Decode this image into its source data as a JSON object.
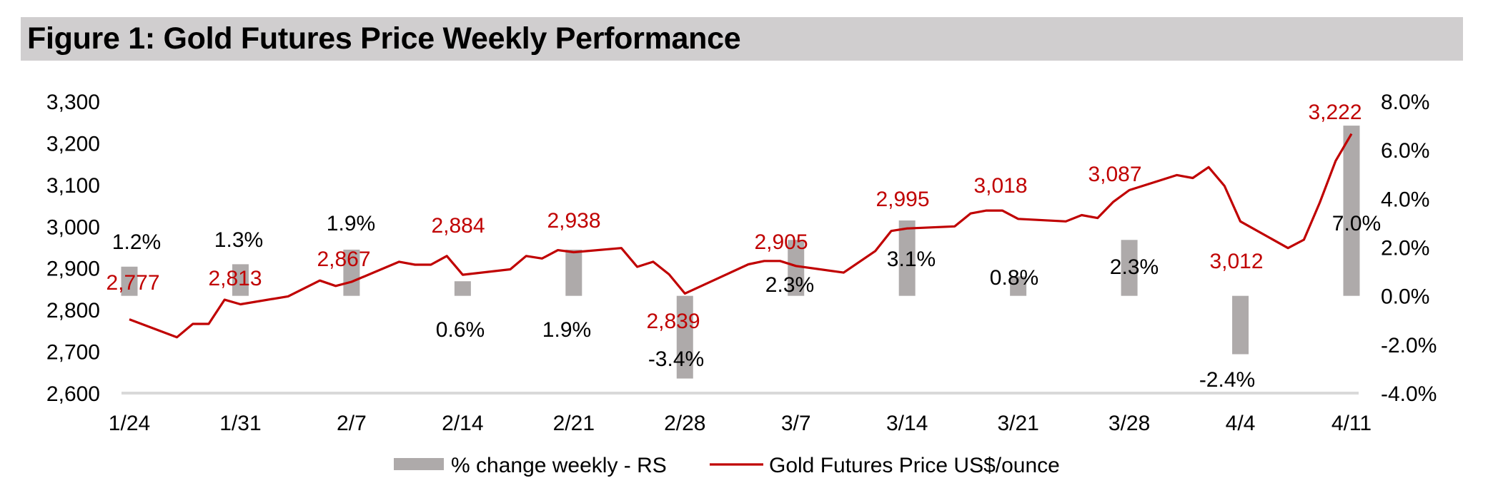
{
  "title": "Figure 1: Gold Futures Price Weekly Performance",
  "colors": {
    "bar": "#AEAAAA",
    "line": "#C00000",
    "title_bg": "#D0CECF",
    "axis": "#D9D9D9"
  },
  "chart_data": {
    "type": "bar+line",
    "title": "Figure 1: Gold Futures Price Weekly Performance",
    "x_tick_labels": [
      "1/24",
      "1/31",
      "2/7",
      "2/14",
      "2/21",
      "2/28",
      "3/7",
      "3/14",
      "3/21",
      "3/28",
      "4/4",
      "4/11"
    ],
    "left_axis": {
      "label": "Gold Futures Price US$/ounce",
      "range": [
        2600,
        3300
      ],
      "ticks": [
        "2,600",
        "2,700",
        "2,800",
        "2,900",
        "3,000",
        "3,100",
        "3,200",
        "3,300"
      ]
    },
    "right_axis": {
      "label": "% change weekly - RS",
      "range": [
        -4,
        8
      ],
      "ticks": [
        "-4.0%",
        "-2.0%",
        "0.0%",
        "2.0%",
        "4.0%",
        "6.0%",
        "8.0%"
      ]
    },
    "legend": {
      "placement": "bottom",
      "entries": [
        "% change weekly - RS",
        "Gold Futures Price US$/ounce"
      ]
    },
    "series": [
      {
        "name": "% change weekly - RS",
        "type": "bar",
        "axis": "right",
        "values": [
          1.2,
          1.3,
          1.9,
          0.6,
          1.9,
          -3.4,
          2.3,
          3.1,
          0.8,
          2.3,
          -2.4,
          7.0
        ],
        "labels": [
          "1.2%",
          "1.3%",
          "1.9%",
          "0.6%",
          "1.9%",
          "-3.4%",
          "2.3%",
          "3.1%",
          "0.8%",
          "2.3%",
          "-2.4%",
          "7.0%"
        ]
      },
      {
        "name": "Gold Futures Price US$/ounce",
        "type": "line",
        "axis": "left",
        "days": [
          0,
          3,
          4,
          5,
          6,
          7,
          10,
          12,
          13,
          14,
          17,
          18,
          19,
          20,
          21,
          24,
          25,
          26,
          27,
          28,
          31,
          32,
          33,
          34,
          35,
          39,
          40,
          41,
          42,
          45,
          47,
          48,
          49,
          52,
          53,
          54,
          55,
          56,
          59,
          60,
          61,
          62,
          63,
          66,
          67,
          68,
          69,
          70,
          73,
          74,
          75,
          76,
          77
        ],
        "values": [
          2777,
          2734,
          2766,
          2766,
          2824,
          2813,
          2832,
          2870,
          2857,
          2867,
          2915,
          2908,
          2908,
          2929,
          2884,
          2897,
          2929,
          2923,
          2943,
          2938,
          2948,
          2903,
          2915,
          2885,
          2839,
          2909,
          2917,
          2917,
          2905,
          2889,
          2941,
          2989,
          2995,
          3000,
          3031,
          3038,
          3038,
          3018,
          3012,
          3027,
          3020,
          3059,
          3087,
          3123,
          3116,
          3142,
          3097,
          3012,
          2948,
          2968,
          3057,
          3157,
          3222
        ],
        "weekly_labels": [
          "2,777",
          "2,813",
          "2,867",
          "2,884",
          "2,938",
          "2,839",
          "2,905",
          "2,995",
          "3,018",
          "3,087",
          "3,012",
          "3,222"
        ]
      }
    ]
  }
}
